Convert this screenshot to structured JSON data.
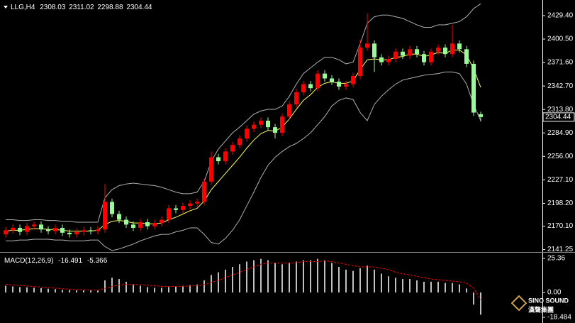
{
  "chart_data": [
    {
      "type": "candlestick",
      "title": "LLG,H4",
      "up_color": "#ff0000",
      "down_color": "#98fb98",
      "open": [
        2160,
        2165,
        2168,
        2163,
        2170,
        2172,
        2166,
        2164,
        2168,
        2162,
        2160,
        2163,
        2165,
        2164,
        2166,
        2200,
        2185,
        2178,
        2172,
        2168,
        2175,
        2170,
        2174,
        2178,
        2192,
        2190,
        2195,
        2198,
        2200,
        2225,
        2255,
        2250,
        2262,
        2270,
        2278,
        2290,
        2295,
        2300,
        2292,
        2285,
        2305,
        2320,
        2335,
        2345,
        2340,
        2358,
        2352,
        2348,
        2342,
        2345,
        2355,
        2390,
        2395,
        2378,
        2372,
        2376,
        2385,
        2380,
        2388,
        2382,
        2372,
        2385,
        2390,
        2382,
        2395,
        2388,
        2370,
        2308.03
      ],
      "high": [
        2169,
        2172,
        2172,
        2174,
        2176,
        2176,
        2170,
        2172,
        2172,
        2166,
        2167,
        2169,
        2169,
        2170,
        2222,
        2204,
        2189,
        2182,
        2176,
        2179,
        2179,
        2178,
        2182,
        2196,
        2196,
        2199,
        2202,
        2204,
        2229,
        2262,
        2259,
        2266,
        2274,
        2282,
        2294,
        2299,
        2304,
        2304,
        2296,
        2309,
        2324,
        2339,
        2349,
        2349,
        2362,
        2362,
        2356,
        2352,
        2349,
        2359,
        2400,
        2432,
        2399,
        2382,
        2380,
        2389,
        2389,
        2392,
        2392,
        2386,
        2389,
        2394,
        2394,
        2418,
        2399,
        2392,
        2374,
        2311.02
      ],
      "low": [
        2156,
        2161,
        2159,
        2159,
        2166,
        2162,
        2160,
        2160,
        2158,
        2156,
        2156,
        2159,
        2160,
        2160,
        2162,
        2181,
        2174,
        2168,
        2164,
        2164,
        2166,
        2166,
        2170,
        2174,
        2186,
        2186,
        2191,
        2194,
        2196,
        2221,
        2246,
        2246,
        2258,
        2266,
        2274,
        2286,
        2291,
        2288,
        2278,
        2281,
        2301,
        2316,
        2331,
        2336,
        2336,
        2348,
        2344,
        2338,
        2338,
        2341,
        2351,
        2386,
        2360,
        2368,
        2368,
        2372,
        2376,
        2376,
        2378,
        2368,
        2368,
        2381,
        2378,
        2378,
        2384,
        2366,
        2306,
        2298.88
      ],
      "close": [
        2165,
        2168,
        2163,
        2170,
        2172,
        2166,
        2164,
        2168,
        2162,
        2160,
        2163,
        2165,
        2164,
        2166,
        2200,
        2185,
        2178,
        2172,
        2168,
        2175,
        2170,
        2174,
        2178,
        2192,
        2190,
        2195,
        2198,
        2200,
        2225,
        2255,
        2250,
        2262,
        2270,
        2278,
        2290,
        2295,
        2300,
        2292,
        2285,
        2305,
        2320,
        2335,
        2345,
        2340,
        2358,
        2352,
        2348,
        2342,
        2345,
        2355,
        2390,
        2395,
        2378,
        2372,
        2376,
        2385,
        2380,
        2388,
        2382,
        2372,
        2385,
        2390,
        2382,
        2395,
        2388,
        2370,
        2310,
        2304.44
      ],
      "overlays": [
        {
          "color": "#b0b0b0",
          "values": [
            2178,
            2178,
            2177,
            2177,
            2178,
            2178,
            2177,
            2177,
            2176,
            2176,
            2175,
            2175,
            2175,
            2175,
            2205,
            2215,
            2220,
            2222,
            2223,
            2222,
            2221,
            2220,
            2218,
            2215,
            2212,
            2210,
            2210,
            2212,
            2225,
            2250,
            2265,
            2275,
            2285,
            2292,
            2300,
            2308,
            2312,
            2314,
            2314,
            2318,
            2330,
            2345,
            2358,
            2365,
            2372,
            2378,
            2378,
            2375,
            2370,
            2372,
            2395,
            2420,
            2428,
            2430,
            2430,
            2428,
            2426,
            2422,
            2418,
            2415,
            2415,
            2418,
            2418,
            2420,
            2422,
            2428,
            2438,
            2444
          ]
        },
        {
          "color": "#b0b0b0",
          "values": [
            2152,
            2152,
            2153,
            2153,
            2154,
            2154,
            2154,
            2153,
            2153,
            2152,
            2152,
            2152,
            2153,
            2153,
            2145,
            2140,
            2142,
            2145,
            2148,
            2152,
            2155,
            2158,
            2160,
            2160,
            2163,
            2165,
            2168,
            2168,
            2160,
            2150,
            2148,
            2155,
            2165,
            2178,
            2195,
            2212,
            2230,
            2245,
            2255,
            2262,
            2268,
            2272,
            2278,
            2285,
            2295,
            2305,
            2318,
            2325,
            2328,
            2326,
            2310,
            2300,
            2320,
            2330,
            2338,
            2345,
            2350,
            2352,
            2354,
            2356,
            2357,
            2358,
            2360,
            2360,
            2358,
            2345,
            2320,
            2300
          ]
        },
        {
          "color": "#ffff66",
          "values": [
            2164,
            2165,
            2165,
            2166,
            2167,
            2167,
            2166,
            2166,
            2165,
            2164,
            2164,
            2164,
            2164,
            2165,
            2172,
            2176,
            2177,
            2176,
            2174,
            2174,
            2173,
            2173,
            2174,
            2178,
            2181,
            2185,
            2189,
            2192,
            2201,
            2215,
            2225,
            2235,
            2245,
            2255,
            2266,
            2276,
            2284,
            2288,
            2287,
            2292,
            2302,
            2314,
            2325,
            2332,
            2341,
            2346,
            2348,
            2346,
            2346,
            2349,
            2363,
            2375,
            2376,
            2375,
            2375,
            2378,
            2379,
            2382,
            2382,
            2379,
            2381,
            2384,
            2383,
            2387,
            2387,
            2381,
            2364,
            2341
          ]
        }
      ],
      "ylim": [
        2139.1,
        2446.0
      ],
      "yticks": [
        {
          "value": 2429.4,
          "label": "2429.40"
        },
        {
          "value": 2400.5,
          "label": "2400.50"
        },
        {
          "value": 2371.6,
          "label": "2371.60"
        },
        {
          "value": 2342.7,
          "label": "2342.70"
        },
        {
          "value": 2313.8,
          "label": "2313.80"
        },
        {
          "value": 2284.9,
          "label": "2284.90"
        },
        {
          "value": 2256,
          "label": "2256.00"
        },
        {
          "value": 2227.1,
          "label": "2227.10"
        },
        {
          "value": 2198.2,
          "label": "2198.20"
        },
        {
          "value": 2170.1,
          "label": "2170.10"
        },
        {
          "value": 2141.25,
          "label": "2141.25"
        }
      ]
    },
    {
      "type": "macd",
      "title": "MACD(12,26,9)",
      "series": [
        {
          "color": "#c0c0c0",
          "style": "histogram",
          "values": [
            5,
            4.5,
            4,
            3.8,
            3.5,
            3.2,
            2.8,
            2.5,
            2,
            1.8,
            1.6,
            1.5,
            1.5,
            1.4,
            9,
            11,
            10,
            8,
            6,
            5,
            4,
            3.5,
            3.5,
            4,
            4.5,
            5,
            5.5,
            6,
            9,
            13,
            15,
            17,
            19,
            21,
            23,
            24,
            25,
            24,
            22,
            21,
            22,
            23,
            24,
            24,
            25,
            24,
            22,
            19,
            17,
            16,
            18,
            20,
            17,
            14,
            12,
            11,
            10,
            10,
            9,
            8,
            8,
            8,
            7,
            7,
            6,
            3,
            -9,
            -16.491
          ]
        },
        {
          "color": "#ff0000",
          "style": "dashed",
          "values": [
            6,
            5.6,
            5.2,
            4.8,
            4.4,
            4,
            3.6,
            3.2,
            2.8,
            2.5,
            2.2,
            2,
            1.8,
            1.7,
            3,
            4.5,
            5.6,
            6,
            6,
            5.8,
            5.4,
            5,
            4.6,
            4.5,
            4.5,
            4.6,
            4.8,
            5,
            6,
            7.5,
            9,
            11,
            13,
            15,
            17,
            19,
            21,
            22,
            22,
            22,
            22,
            22,
            23,
            23,
            23,
            23.5,
            23,
            22,
            21,
            20,
            19,
            19,
            19,
            18,
            17,
            15,
            14,
            13,
            12,
            11,
            10,
            9.5,
            9,
            8.5,
            8,
            7,
            3,
            -5.366
          ]
        }
      ],
      "ylim": [
        -21.13,
        29.05
      ],
      "yticks": [
        25.36,
        {
          "value": 0,
          "label": "0.00"
        },
        -18.484
      ]
    }
  ],
  "watermark": {
    "line1": "SINO SOUND",
    "line2": "漢聲集團"
  }
}
